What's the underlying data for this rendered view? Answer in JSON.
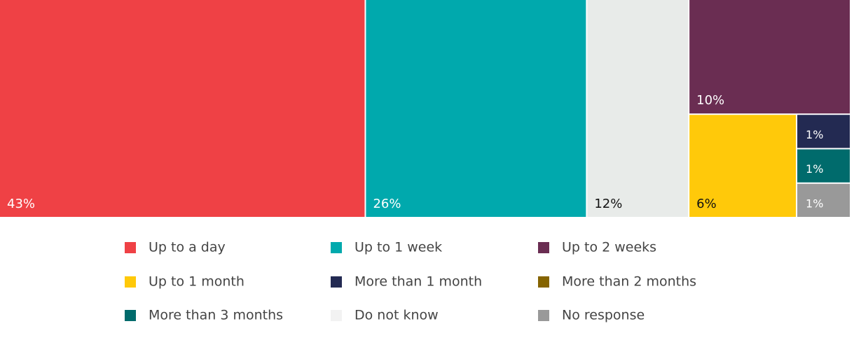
{
  "chart_data": {
    "type": "treemap",
    "series": [
      {
        "name": "Up to a day",
        "color": "#ef4145",
        "value": 43,
        "value_label": "43%"
      },
      {
        "name": "Up to 1 week",
        "color": "#00a9ad",
        "value": 26,
        "value_label": "26%"
      },
      {
        "name": "Up to 2 weeks",
        "color": "#6a2d52",
        "value": 10,
        "value_label": "10%"
      },
      {
        "name": "Up to 1 month",
        "color": "#ffc90a",
        "value": 6,
        "value_label": "6%"
      },
      {
        "name": "More than 1 month",
        "color": "#232a52",
        "value": 1,
        "value_label": "1%"
      },
      {
        "name": "More than 2 months",
        "color": "#856400",
        "value": 0,
        "value_label": null
      },
      {
        "name": "More than 3 months",
        "color": "#006b6c",
        "value": 1,
        "value_label": "1%"
      },
      {
        "name": "Do not know",
        "color": "#e8ebe9",
        "value": 12,
        "value_label": "12%"
      },
      {
        "name": "No response",
        "color": "#999999",
        "value": 1,
        "value_label": "1%"
      }
    ]
  }
}
